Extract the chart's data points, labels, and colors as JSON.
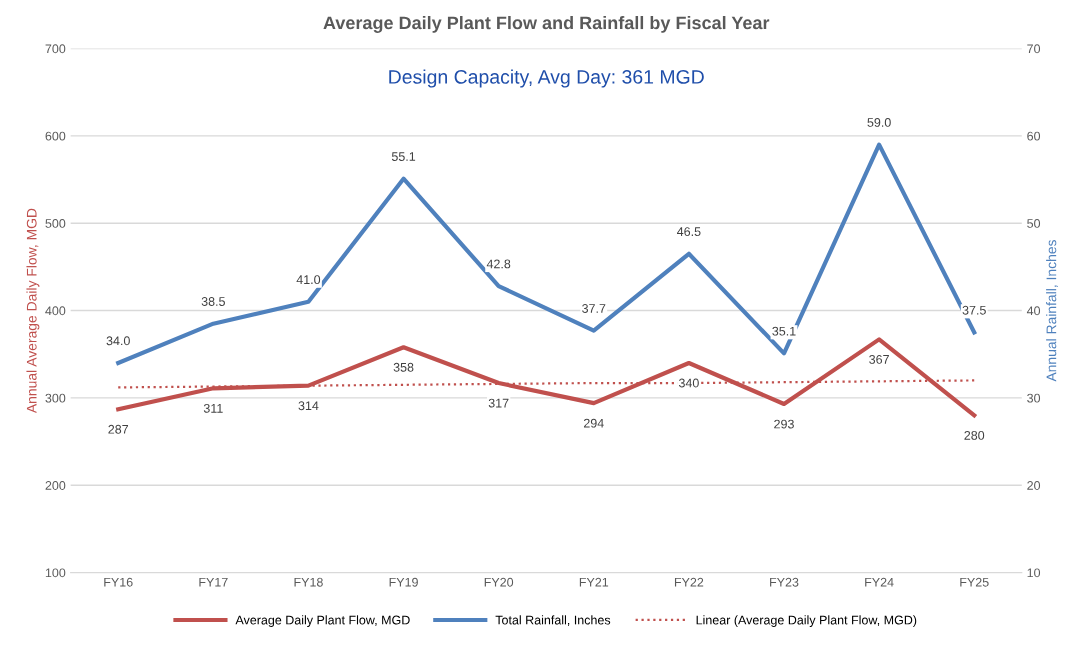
{
  "chart_data": {
    "type": "line",
    "title": "Average Daily Plant Flow and Rainfall by Fiscal Year",
    "categories": [
      "FY16",
      "FY17",
      "FY18",
      "FY19",
      "FY20",
      "FY21",
      "FY22",
      "FY23",
      "FY24",
      "FY25"
    ],
    "series": [
      {
        "name": "Average Daily Plant Flow, MGD",
        "color": "#c0504d",
        "values": [
          287,
          311,
          314,
          358,
          317,
          294,
          340,
          293,
          367,
          280
        ],
        "value_labels": [
          "287",
          "311",
          "314",
          "358",
          "317",
          "294",
          "340",
          "293",
          "367",
          "280"
        ]
      },
      {
        "name": "Total Rainfall, Inches",
        "color": "#4f81bd",
        "axis": "y2",
        "values": [
          34.0,
          38.5,
          41.0,
          55.1,
          42.8,
          37.7,
          46.5,
          35.1,
          59.0,
          37.5
        ],
        "value_labels": [
          "34.0",
          "38.5",
          "41.0",
          "55.1",
          "42.8",
          "37.7",
          "46.5",
          "35.1",
          "59.0",
          "37.5"
        ]
      },
      {
        "name": "Linear (Average Daily Plant Flow, MGD)",
        "color": "#c0504d",
        "line_style": "dotted",
        "values": [
          312,
          313,
          314,
          315,
          316,
          317,
          317,
          318,
          319,
          320
        ]
      }
    ],
    "ylabel": "Annual Average Daily Flow, MGD",
    "y2label": "Annual Rainfall, Inches",
    "ylim": [
      100,
      700
    ],
    "yticks": [
      100,
      200,
      300,
      400,
      500,
      600,
      700
    ],
    "y2lim": [
      10,
      70
    ],
    "y2ticks": [
      10,
      20,
      30,
      40,
      50,
      60,
      70
    ],
    "annotations": [
      "Design Capacity, Avg Day: 361 MGD"
    ],
    "grid": "y",
    "legend": "bottom",
    "marker": "none",
    "line_style": "solid"
  }
}
